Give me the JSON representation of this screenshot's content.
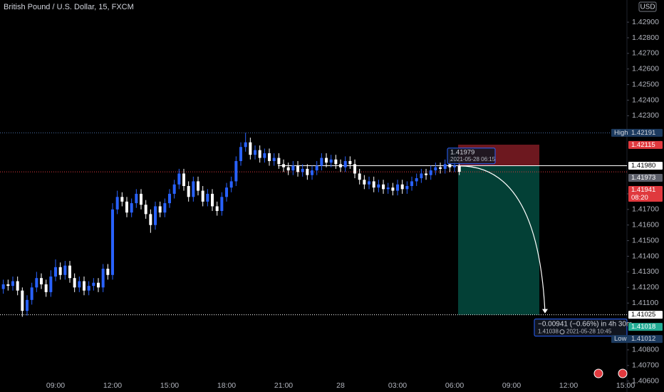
{
  "chart_data": {
    "type": "candlestick",
    "title": "British Pound / U.S. Dollar, 15, FXCM",
    "currency": "USD",
    "up_color": "#2962ff",
    "down_color": "#ffffff",
    "categories": [
      null,
      null,
      null,
      null,
      null,
      null,
      null,
      null,
      null,
      null,
      null,
      null,
      "09:00",
      null,
      null,
      null,
      null,
      null,
      null,
      null,
      null,
      null,
      null,
      null,
      "12:00",
      null,
      null,
      null,
      null,
      null,
      null,
      null,
      null,
      null,
      null,
      null,
      "15:00",
      null,
      null,
      null,
      null,
      null,
      null,
      null,
      null,
      null,
      null,
      null,
      "18:00",
      null,
      null,
      null,
      null,
      null,
      null,
      null,
      null,
      null,
      null,
      null,
      "21:00",
      null,
      null,
      null,
      null,
      null,
      null,
      null,
      null,
      null,
      null,
      null,
      "28",
      null,
      null,
      null,
      null,
      null,
      null,
      null,
      null,
      null,
      null,
      null,
      "03:00",
      null,
      null,
      null,
      null,
      null,
      null,
      null,
      null,
      null,
      null,
      null,
      "06:00",
      null,
      null,
      null,
      null,
      null,
      null,
      null,
      null,
      null,
      null,
      null,
      "09:00",
      null,
      null,
      null,
      null,
      null,
      null,
      null,
      null,
      null,
      null,
      null,
      "12:00",
      null,
      null,
      null,
      null,
      null,
      null,
      null,
      null,
      null,
      null,
      null,
      "15:00"
    ],
    "open": [
      1.4116,
      1.4119,
      1.4122,
      1.4121,
      1.4124,
      1.4118,
      1.4105,
      1.4112,
      1.412,
      1.4126,
      1.4122,
      1.4117,
      1.4127,
      1.4133,
      1.4128,
      1.4134,
      1.4126,
      1.412,
      1.4124,
      1.4118,
      1.4121,
      1.4123,
      1.412,
      1.4132,
      1.4128,
      1.417,
      1.4178,
      1.4175,
      1.4168,
      1.4174,
      1.418,
      1.4173,
      1.4167,
      1.416,
      1.4172,
      1.4168,
      1.4174,
      1.418,
      1.4186,
      1.4193,
      1.4185,
      1.4178,
      1.4188,
      1.4182,
      1.4175,
      1.418,
      1.4172,
      1.4169,
      1.4178,
      1.4184,
      1.4188,
      1.4201,
      1.421,
      1.4213,
      1.4205,
      1.4208,
      1.4203,
      1.4206,
      1.4201,
      1.4203,
      1.4199,
      1.4197,
      1.4195,
      1.4198,
      1.4194,
      1.4196,
      1.4192,
      1.4195,
      1.4198,
      1.4203,
      1.42,
      1.4202,
      1.4199,
      1.4197,
      1.4201,
      1.4199,
      1.4193,
      1.4189,
      1.4186,
      1.4188,
      1.4184,
      1.4186,
      1.4183,
      1.4184,
      1.4182,
      1.4186,
      1.4183,
      1.4185,
      1.4188,
      1.419,
      1.4193,
      1.4192,
      1.4195,
      1.4197,
      1.4196,
      1.4199,
      1.4197,
      1.4198,
      null,
      null,
      null,
      null,
      null,
      null,
      null,
      null,
      null,
      null,
      null,
      null,
      null,
      null,
      null,
      null,
      null,
      null,
      null,
      null,
      null,
      null,
      null,
      null,
      null,
      null,
      null,
      null,
      null,
      null,
      null,
      null,
      null,
      null,
      null
    ],
    "high": [
      1.4122,
      1.4125,
      1.4125,
      1.4127,
      1.4127,
      1.412,
      1.4115,
      1.4123,
      1.413,
      1.4129,
      1.4125,
      1.4131,
      1.4138,
      1.4136,
      1.4137,
      1.4137,
      1.4129,
      1.4127,
      1.4127,
      1.4124,
      1.4126,
      1.4126,
      1.4135,
      1.4135,
      1.4174,
      1.4182,
      1.4181,
      1.4178,
      1.4177,
      1.4183,
      1.4183,
      1.4176,
      1.417,
      1.4175,
      1.4175,
      1.4177,
      1.4183,
      1.4189,
      1.4196,
      1.4196,
      1.4188,
      1.4191,
      1.4191,
      1.4185,
      1.4183,
      1.4183,
      1.4175,
      1.4181,
      1.4187,
      1.4191,
      1.4204,
      1.4213,
      1.42191,
      1.4216,
      1.4211,
      1.4211,
      1.4209,
      1.4209,
      1.4206,
      1.4206,
      1.4202,
      1.42,
      1.4201,
      1.4201,
      1.4199,
      1.4199,
      1.4198,
      1.4201,
      1.4206,
      1.4206,
      1.4205,
      1.4205,
      1.4202,
      1.4204,
      1.4204,
      1.4202,
      1.4196,
      1.4192,
      1.4191,
      1.4191,
      1.4189,
      1.4189,
      1.4187,
      1.4187,
      1.4189,
      1.4189,
      1.4188,
      1.4191,
      1.4193,
      1.4196,
      1.4196,
      1.4198,
      1.42,
      1.42,
      1.4202,
      1.4202,
      1.4201,
      1.4201,
      null,
      null,
      null,
      null,
      null,
      null,
      null,
      null,
      null,
      null,
      null,
      null,
      null,
      null,
      null,
      null,
      null,
      null,
      null,
      null,
      null,
      null,
      null,
      null,
      null,
      null,
      null,
      null,
      null,
      null,
      null,
      null,
      null,
      null,
      null
    ],
    "low": [
      1.4113,
      1.4116,
      1.4118,
      1.4118,
      1.4115,
      1.41012,
      1.4102,
      1.4109,
      1.4117,
      1.4119,
      1.4114,
      1.4114,
      1.4124,
      1.4125,
      1.4125,
      1.4123,
      1.4117,
      1.4117,
      1.4115,
      1.4115,
      1.4118,
      1.4117,
      1.4117,
      1.4125,
      1.4125,
      1.4167,
      1.4172,
      1.4165,
      1.4165,
      1.4171,
      1.417,
      1.4164,
      1.4155,
      1.4157,
      1.4165,
      1.4165,
      1.4171,
      1.4177,
      1.4183,
      1.4182,
      1.4175,
      1.4175,
      1.4179,
      1.4172,
      1.4172,
      1.4169,
      1.4166,
      1.4166,
      1.4175,
      1.4181,
      1.4185,
      1.4198,
      1.4207,
      1.4202,
      1.4202,
      1.42,
      1.42,
      1.4198,
      1.4198,
      1.4196,
      1.4194,
      1.4192,
      1.4192,
      1.4191,
      1.4191,
      1.4189,
      1.4189,
      1.4192,
      1.4195,
      1.4197,
      1.4197,
      1.4196,
      1.4194,
      1.4194,
      1.4196,
      1.419,
      1.4186,
      1.4183,
      1.4183,
      1.4181,
      1.4181,
      1.418,
      1.418,
      1.4179,
      1.4179,
      1.418,
      1.418,
      1.4182,
      1.4185,
      1.4187,
      1.4189,
      1.4189,
      1.4192,
      1.4193,
      1.4193,
      1.4194,
      1.4194,
      1.4192,
      null,
      null,
      null,
      null,
      null,
      null,
      null,
      null,
      null,
      null,
      null,
      null,
      null,
      null,
      null,
      null,
      null,
      null,
      null,
      null,
      null,
      null,
      null,
      null,
      null,
      null,
      null,
      null,
      null,
      null,
      null,
      null,
      null,
      null,
      null
    ],
    "close": [
      1.4119,
      1.4122,
      1.4121,
      1.4124,
      1.4118,
      1.4105,
      1.4112,
      1.412,
      1.4126,
      1.4122,
      1.4117,
      1.4127,
      1.4133,
      1.4128,
      1.4134,
      1.4126,
      1.412,
      1.4124,
      1.4118,
      1.4121,
      1.4123,
      1.412,
      1.4132,
      1.4128,
      1.417,
      1.4178,
      1.4175,
      1.4168,
      1.4174,
      1.418,
      1.4173,
      1.4167,
      1.416,
      1.4172,
      1.4168,
      1.4174,
      1.418,
      1.4186,
      1.4193,
      1.4185,
      1.4178,
      1.4188,
      1.4182,
      1.4175,
      1.418,
      1.4172,
      1.4169,
      1.4178,
      1.4184,
      1.4188,
      1.4201,
      1.421,
      1.4213,
      1.4205,
      1.4208,
      1.4203,
      1.4206,
      1.4201,
      1.4203,
      1.4199,
      1.4197,
      1.4195,
      1.4198,
      1.4194,
      1.4196,
      1.4192,
      1.4195,
      1.4198,
      1.4203,
      1.42,
      1.4202,
      1.4199,
      1.4197,
      1.4201,
      1.4199,
      1.4193,
      1.4189,
      1.4186,
      1.4188,
      1.4184,
      1.4186,
      1.4183,
      1.4184,
      1.4182,
      1.4186,
      1.4183,
      1.4185,
      1.4188,
      1.419,
      1.4193,
      1.4192,
      1.4195,
      1.4197,
      1.4196,
      1.4199,
      1.4197,
      1.4198,
      1.41941,
      null,
      null,
      null,
      null,
      null,
      null,
      null,
      null,
      null,
      null,
      null,
      null,
      null,
      null,
      null,
      null,
      null,
      null,
      null,
      null,
      null,
      null,
      null,
      null,
      null,
      null,
      null,
      null,
      null,
      null,
      null,
      null,
      null,
      null,
      null
    ],
    "ylim": [
      1.4053,
      1.43042
    ],
    "yticks": [
      {
        "value": 1.429,
        "label": "1.42900"
      },
      {
        "value": 1.428,
        "label": "1.42800"
      },
      {
        "value": 1.427,
        "label": "1.42700"
      },
      {
        "value": 1.426,
        "label": "1.42600"
      },
      {
        "value": 1.425,
        "label": "1.42500"
      },
      {
        "value": 1.424,
        "label": "1.42400"
      },
      {
        "value": 1.423,
        "label": "1.42300"
      },
      {
        "value": 1.418,
        "label": "1.41800"
      },
      {
        "value": 1.417,
        "label": "1.41700"
      },
      {
        "value": 1.416,
        "label": "1.41600"
      },
      {
        "value": 1.415,
        "label": "1.41500"
      },
      {
        "value": 1.414,
        "label": "1.41400"
      },
      {
        "value": 1.413,
        "label": "1.41300"
      },
      {
        "value": 1.412,
        "label": "1.41200"
      },
      {
        "value": 1.411,
        "label": "1.41100"
      },
      {
        "value": 1.408,
        "label": "1.40800"
      },
      {
        "value": 1.407,
        "label": "1.40700"
      },
      {
        "value": 1.406,
        "label": "1.40600"
      }
    ],
    "price_labels": [
      {
        "name": "High",
        "value": 1.42191,
        "color": "#1c3a5e",
        "text_color": "#d1d4dc"
      },
      {
        "value": 1.42115,
        "color": "#e0393e",
        "text_color": "#ffffff"
      },
      {
        "value": 1.4198,
        "label": "1.41980",
        "color": "#ffffff",
        "text_color": "#000000"
      },
      {
        "value": 1.41973,
        "color": "#5d606b",
        "text_color": "#ffffff"
      },
      {
        "value": 1.41941,
        "color": "#e0393e",
        "text_color": "#ffffff",
        "countdown": "08:20"
      },
      {
        "value": 1.41025,
        "color": "#ffffff",
        "text_color": "#000000"
      },
      {
        "value": 1.41018,
        "color": "#22ab94",
        "text_color": "#ffffff"
      },
      {
        "name": "Low",
        "value": 1.41012,
        "color": "#1c3a5e",
        "text_color": "#d1d4dc"
      }
    ],
    "position": {
      "entry": 1.41979,
      "entry_time": "2021-05-28 06:15",
      "stop": 1.42115,
      "target": 1.41025,
      "result_text": "−0.00941 (−0.66%) in 4h 30m",
      "exit_price": 1.41038,
      "exit_time": "2021-05-28 10:45"
    }
  }
}
